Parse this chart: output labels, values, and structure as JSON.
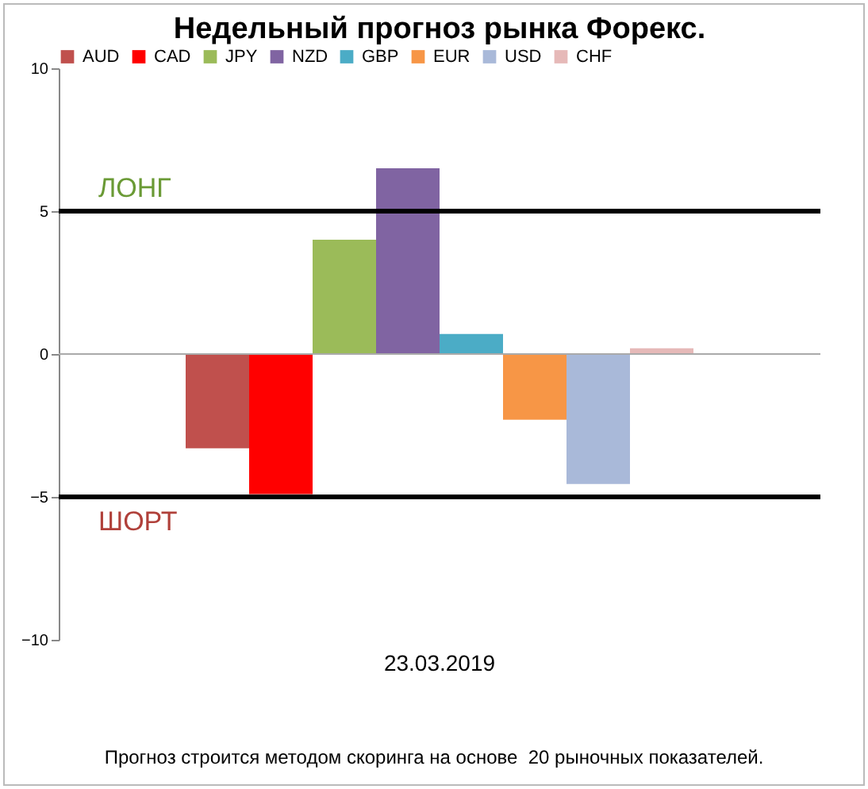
{
  "chart_data": {
    "type": "bar",
    "title": "Недельный прогноз рынка Форекс.",
    "categories": [
      "23.03.2019"
    ],
    "series": [
      {
        "name": "AUD",
        "color": "#c0504d",
        "values": [
          -3.3
        ]
      },
      {
        "name": "CAD",
        "color": "#ff0000",
        "values": [
          -4.9
        ]
      },
      {
        "name": "JPY",
        "color": "#9bbb59",
        "values": [
          4.0
        ]
      },
      {
        "name": "NZD",
        "color": "#8064a2",
        "values": [
          6.5
        ]
      },
      {
        "name": "GBP",
        "color": "#4bacc6",
        "values": [
          0.7
        ]
      },
      {
        "name": "EUR",
        "color": "#f79646",
        "values": [
          -2.3
        ]
      },
      {
        "name": "USD",
        "color": "#a9b9d9",
        "values": [
          -4.55
        ]
      },
      {
        "name": "CHF",
        "color": "#e6b9b8",
        "values": [
          0.2
        ]
      }
    ],
    "ylim": [
      -10,
      10
    ],
    "yticks": [
      -10,
      -5,
      0,
      5,
      10
    ],
    "grid": false,
    "legend": "top",
    "ref_lines": [
      {
        "axis": "y",
        "value": 5,
        "label": "ЛОНГ",
        "color": "#000000"
      },
      {
        "axis": "y",
        "value": -5,
        "label": "ШОРТ",
        "color": "#000000"
      }
    ],
    "annotations": [
      "Прогноз строится методом скоринга на основе  20 рыночных показателей."
    ]
  }
}
